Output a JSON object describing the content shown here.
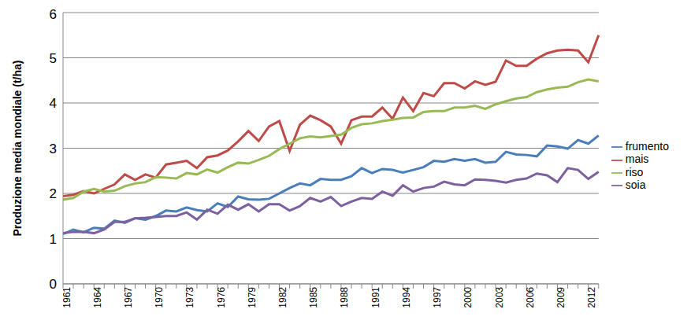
{
  "chart_data": {
    "type": "line",
    "y_label": "Produzione media mondiale  (t/ha)",
    "categories": [
      "1961",
      null,
      null,
      "1964",
      null,
      null,
      "1967",
      null,
      null,
      "1970",
      null,
      null,
      "1973",
      null,
      null,
      "1976",
      null,
      null,
      "1979",
      null,
      null,
      "1982",
      null,
      null,
      "1985",
      null,
      null,
      "1988",
      null,
      null,
      "1991",
      null,
      null,
      "1994",
      null,
      null,
      "1997",
      null,
      null,
      "2000",
      null,
      null,
      "2003",
      null,
      null,
      "2006",
      null,
      null,
      "2009",
      null,
      null,
      "2012",
      null
    ],
    "ylim": [
      0,
      6
    ],
    "yticks": [
      0,
      1,
      2,
      3,
      4,
      5,
      6
    ],
    "grid": true,
    "legend": "right",
    "series": [
      {
        "name": "frumento",
        "color": "#4a7ebb",
        "values": [
          1.1,
          1.2,
          1.14,
          1.24,
          1.22,
          1.4,
          1.35,
          1.45,
          1.42,
          1.5,
          1.62,
          1.6,
          1.69,
          1.63,
          1.6,
          1.78,
          1.7,
          1.93,
          1.87,
          1.86,
          1.88,
          2.0,
          2.12,
          2.22,
          2.18,
          2.32,
          2.3,
          2.3,
          2.38,
          2.56,
          2.45,
          2.54,
          2.52,
          2.46,
          2.52,
          2.58,
          2.72,
          2.7,
          2.76,
          2.72,
          2.76,
          2.68,
          2.7,
          2.92,
          2.86,
          2.85,
          2.82,
          3.06,
          3.04,
          2.99,
          3.18,
          3.1,
          3.28
        ]
      },
      {
        "name": "mais",
        "color": "#be4b48",
        "values": [
          1.94,
          1.97,
          2.05,
          2.0,
          2.1,
          2.2,
          2.42,
          2.3,
          2.42,
          2.35,
          2.64,
          2.68,
          2.72,
          2.56,
          2.8,
          2.84,
          2.95,
          3.15,
          3.38,
          3.16,
          3.48,
          3.6,
          2.94,
          3.52,
          3.72,
          3.62,
          3.48,
          3.1,
          3.62,
          3.7,
          3.7,
          3.9,
          3.65,
          4.12,
          3.82,
          4.22,
          4.15,
          4.44,
          4.44,
          4.32,
          4.48,
          4.4,
          4.47,
          4.94,
          4.82,
          4.82,
          4.98,
          5.1,
          5.16,
          5.18,
          5.16,
          4.9,
          5.5
        ]
      },
      {
        "name": "riso",
        "color": "#98b954",
        "values": [
          1.86,
          1.9,
          2.04,
          2.1,
          2.04,
          2.06,
          2.16,
          2.22,
          2.25,
          2.36,
          2.35,
          2.33,
          2.45,
          2.42,
          2.53,
          2.46,
          2.58,
          2.68,
          2.66,
          2.74,
          2.83,
          2.98,
          3.1,
          3.22,
          3.26,
          3.24,
          3.27,
          3.3,
          3.45,
          3.53,
          3.55,
          3.6,
          3.63,
          3.67,
          3.68,
          3.8,
          3.82,
          3.82,
          3.9,
          3.9,
          3.94,
          3.87,
          3.97,
          4.04,
          4.1,
          4.13,
          4.24,
          4.3,
          4.34,
          4.36,
          4.46,
          4.52,
          4.48
        ]
      },
      {
        "name": "soia",
        "color": "#7d60a0",
        "values": [
          1.12,
          1.15,
          1.15,
          1.12,
          1.2,
          1.37,
          1.37,
          1.45,
          1.46,
          1.48,
          1.5,
          1.5,
          1.58,
          1.42,
          1.64,
          1.55,
          1.75,
          1.64,
          1.76,
          1.6,
          1.76,
          1.76,
          1.62,
          1.72,
          1.9,
          1.82,
          1.92,
          1.72,
          1.82,
          1.9,
          1.88,
          2.04,
          1.95,
          2.18,
          2.04,
          2.12,
          2.15,
          2.26,
          2.2,
          2.18,
          2.31,
          2.3,
          2.28,
          2.24,
          2.3,
          2.33,
          2.44,
          2.4,
          2.25,
          2.56,
          2.52,
          2.32,
          2.48
        ]
      }
    ]
  }
}
